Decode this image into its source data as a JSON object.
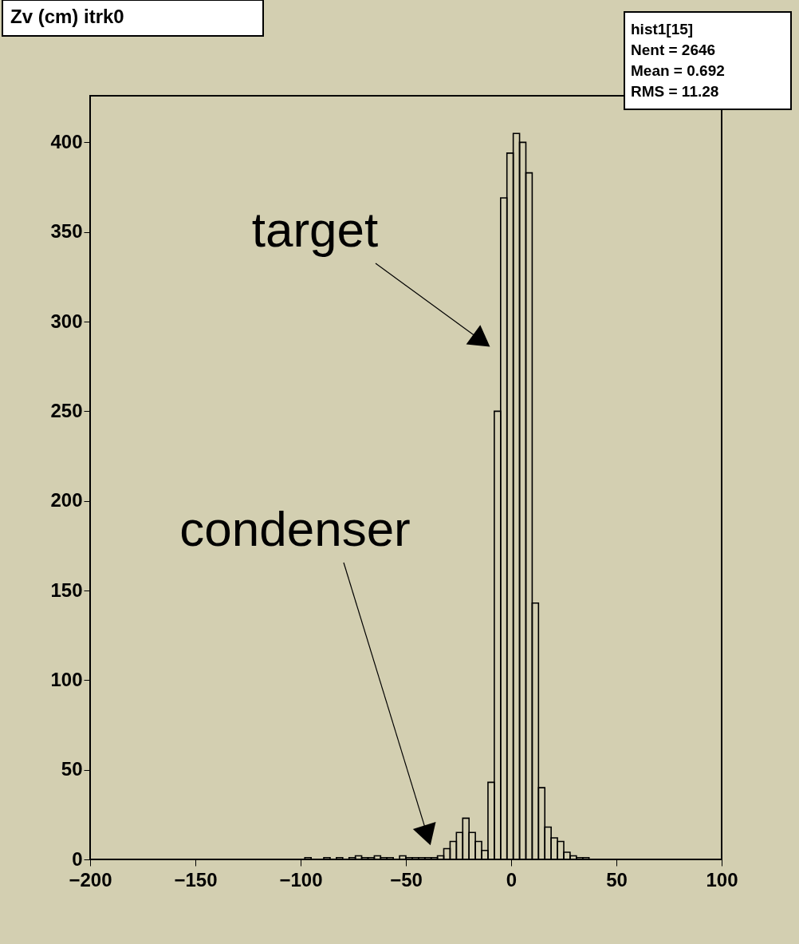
{
  "chart_data": {
    "type": "histogram",
    "title": "Zv (cm) itrk0",
    "bins": [
      -200,
      -197,
      -194,
      -191,
      -188,
      -185,
      -182,
      -179,
      -176,
      -173,
      -170,
      -167,
      -164,
      -161,
      -158,
      -155,
      -152,
      -149,
      -146,
      -143,
      -140,
      -137,
      -134,
      -131,
      -128,
      -125,
      -122,
      -119,
      -116,
      -113,
      -110,
      -107,
      -104,
      -101,
      -98,
      -95,
      -92,
      -89,
      -86,
      -83,
      -80,
      -77,
      -74,
      -71,
      -68,
      -65,
      -62,
      -59,
      -56,
      -53,
      -50,
      -47,
      -44,
      -41,
      -38,
      -35,
      -32,
      -29,
      -26,
      -23,
      -20,
      -17,
      -14,
      -11,
      -8,
      -5,
      -2,
      1,
      4,
      7,
      10,
      13,
      16,
      19,
      22,
      25,
      28,
      31,
      34,
      37,
      40,
      43,
      46,
      49,
      52,
      55,
      58,
      61,
      64,
      67,
      70,
      73,
      76,
      79,
      82,
      85,
      88,
      91,
      94,
      97,
      100
    ],
    "values": [
      0,
      0,
      0,
      0,
      0,
      0,
      0,
      0,
      0,
      0,
      0,
      0,
      0,
      0,
      0,
      0,
      0,
      0,
      0,
      0,
      0,
      0,
      0,
      0,
      0,
      0,
      0,
      0,
      0,
      0,
      0,
      0,
      0,
      0,
      1,
      0,
      0,
      1,
      0,
      1,
      0,
      1,
      2,
      1,
      1,
      2,
      1,
      1,
      0,
      2,
      1,
      1,
      1,
      1,
      1,
      2,
      6,
      10,
      15,
      23,
      15,
      10,
      5,
      43,
      250,
      369,
      394,
      405,
      400,
      383,
      143,
      40,
      18,
      12,
      10,
      4,
      2,
      1,
      1,
      0,
      0,
      0,
      0,
      0,
      0,
      0,
      0,
      0,
      0,
      0,
      0,
      0,
      0,
      0,
      0,
      0,
      0,
      0,
      0,
      0
    ],
    "color": "#000000",
    "xlim": [
      -200,
      100
    ],
    "xticks": [
      -200,
      -150,
      -100,
      -50,
      0,
      50,
      100
    ],
    "ylim": [
      0,
      426
    ],
    "yticks": [
      0,
      50,
      100,
      150,
      200,
      250,
      300,
      350,
      400
    ],
    "grid": false,
    "annotations": [
      "target",
      "condenser",
      "hist1[15]",
      "Nent = 2646",
      "Mean = 0.692",
      "RMS = 11.28"
    ]
  }
}
